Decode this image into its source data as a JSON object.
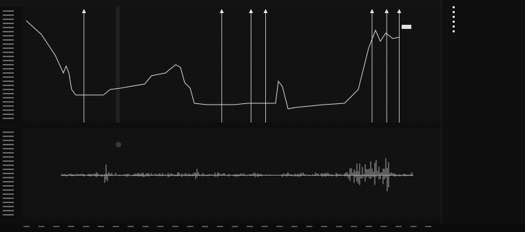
{
  "window": {
    "background": "#0e0e0e"
  },
  "upper_plot": {
    "grid": true,
    "trace_color": "#d7d7d7",
    "marker_color": "#e6e6e6",
    "markers": [
      {
        "pos": 0.145,
        "label": ""
      },
      {
        "pos": 0.475,
        "label": ""
      },
      {
        "pos": 0.545,
        "label": ""
      },
      {
        "pos": 0.58,
        "label": ""
      },
      {
        "pos": 0.835,
        "label": ""
      },
      {
        "pos": 0.87,
        "label": ""
      },
      {
        "pos": 0.9,
        "label": ""
      }
    ],
    "annotation_box": ""
  },
  "lower_plot": {
    "grid": true,
    "trace_color": "#cfcfcf",
    "baseline_level": 0.52
  },
  "side_panel": {
    "title": "",
    "legend": [
      {
        "label": "",
        "color": "#e0e0e0"
      },
      {
        "label": "",
        "color": "#e0e0e0"
      },
      {
        "label": "",
        "color": "#e0e0e0"
      },
      {
        "label": "",
        "color": "#e0e0e0"
      },
      {
        "label": "",
        "color": "#e0e0e0"
      },
      {
        "label": "",
        "color": "#e0e0e0"
      }
    ],
    "params": [
      {
        "name": "",
        "value": ""
      },
      {
        "name": "",
        "value": ""
      },
      {
        "name": "",
        "value": ""
      },
      {
        "name": "",
        "value": ""
      },
      {
        "name": "",
        "value": ""
      },
      {
        "name": "",
        "value": ""
      },
      {
        "name": "",
        "value": ""
      },
      {
        "name": "",
        "value": ""
      },
      {
        "name": "",
        "value": ""
      },
      {
        "name": "",
        "value": ""
      },
      {
        "name": "",
        "value": ""
      },
      {
        "name": "",
        "value": ""
      },
      {
        "name": "",
        "value": ""
      },
      {
        "name": "",
        "value": ""
      },
      {
        "name": "",
        "value": ""
      },
      {
        "name": "",
        "value": ""
      },
      {
        "name": "",
        "value": ""
      },
      {
        "name": "",
        "value": ""
      },
      {
        "name": "",
        "value": ""
      },
      {
        "name": "",
        "value": ""
      }
    ]
  }
}
